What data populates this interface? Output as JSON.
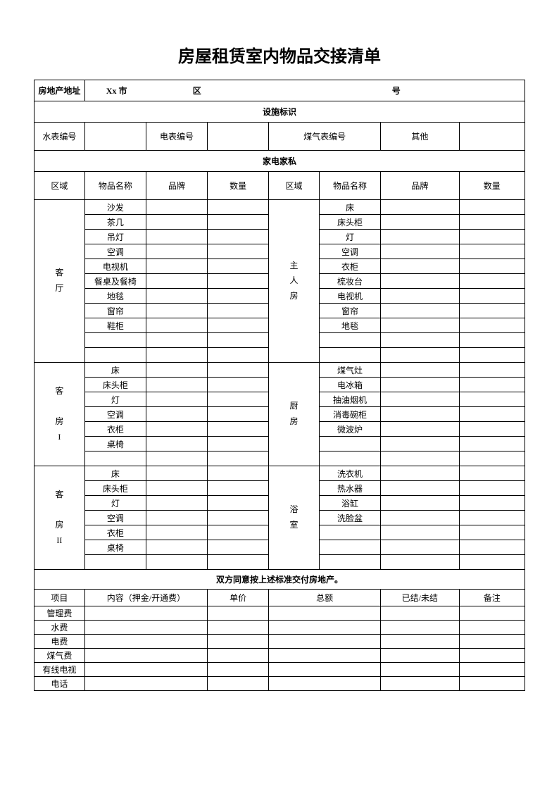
{
  "title": "房屋租赁室内物品交接清单",
  "address": {
    "label": "房地产地址",
    "city": "Xx 市",
    "district": "区",
    "number": "号"
  },
  "facility_section": "设施标识",
  "meters": {
    "water": "水表编号",
    "electric": "电表编号",
    "gas": "煤气表编号",
    "other": "其他"
  },
  "appliance_section": "家电家私",
  "headers": {
    "area": "区域",
    "item_name": "物品名称",
    "brand": "品牌",
    "quantity": "数量"
  },
  "areas": {
    "living_room": "客<br>厅",
    "master_bedroom": "主<br>人<br>房",
    "guest_room_1": "客<br><br>房<br>I",
    "kitchen": "厨<br>房",
    "guest_room_2": "客<br><br>房<br>II",
    "bathroom": "浴<br>室"
  },
  "living_room_items": [
    "沙发",
    "茶几",
    "吊灯",
    "空调",
    "电视机",
    "餐桌及餐椅",
    "地毯",
    "窗帘",
    "鞋柜",
    "",
    ""
  ],
  "master_bedroom_items": [
    "床",
    "床头柜",
    "灯",
    "空调",
    "衣柜",
    "梳妆台",
    "电视机",
    "窗帘",
    "地毯",
    "",
    ""
  ],
  "guest_room_1_items": [
    "床",
    "床头柜",
    "灯",
    "空调",
    "衣柜",
    "桌椅",
    ""
  ],
  "kitchen_items": [
    "煤气灶",
    "电冰箱",
    "抽油烟机",
    "消毒碗柜",
    "微波炉",
    "",
    ""
  ],
  "guest_room_2_items": [
    "床",
    "床头柜",
    "灯",
    "空调",
    "衣柜",
    "桌椅",
    ""
  ],
  "bathroom_items": [
    "洗衣机",
    "热水器",
    "浴缸",
    "洗脸盆",
    "",
    "",
    ""
  ],
  "agreement": "双方同意按上述标准交付房地产。",
  "fee_headers": {
    "project": "项目",
    "content": "内容（押金/开通费）",
    "unit_price": "单价",
    "total": "总额",
    "settled": "已结/未结",
    "remark": "备注"
  },
  "fee_items": [
    "管理费",
    "水费",
    "电费",
    "煤气费",
    "有线电视",
    "电话"
  ]
}
